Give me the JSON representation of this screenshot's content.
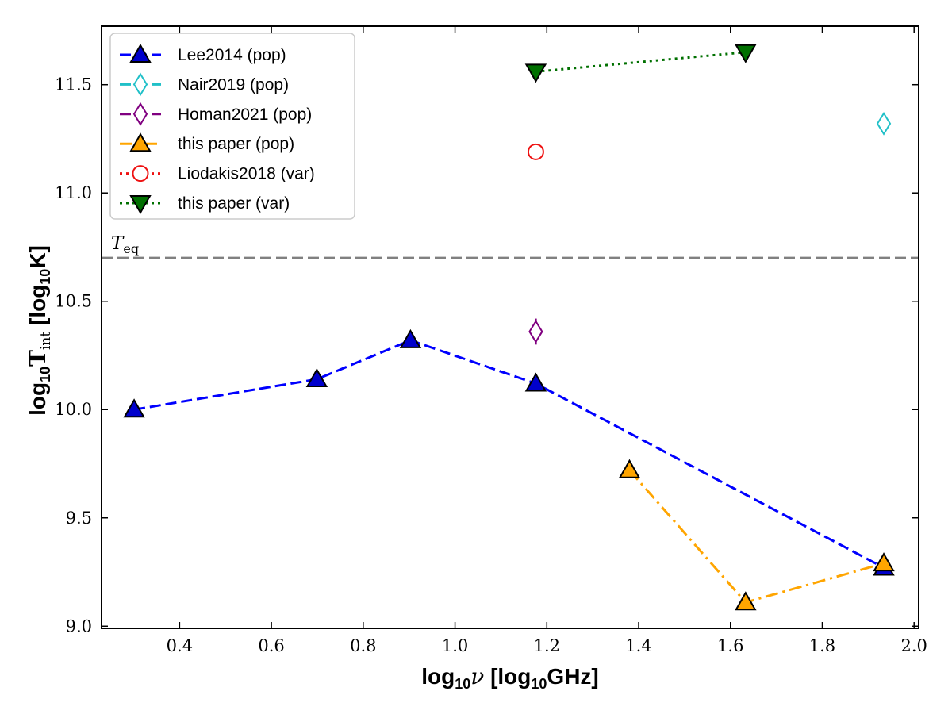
{
  "chart_data": {
    "type": "line",
    "title": "",
    "xlabel": "log10ν [log10GHz]",
    "xlabel_parts": {
      "pre": "log",
      "sub": "10",
      "sym": "ν",
      "post": " [log",
      "post_sub": "10",
      "post_tail": "GHz]"
    },
    "ylabel": "log10Tint [log10K]",
    "ylabel_parts": {
      "pre": "log",
      "sub": "10",
      "sym": "T",
      "sym_sub": "int",
      "post": " [log",
      "post_sub": "10",
      "post_tail": "K]"
    },
    "xlim": [
      0.23,
      2.01
    ],
    "ylim": [
      8.99,
      11.77
    ],
    "xticks": [
      0.4,
      0.6,
      0.8,
      1.0,
      1.2,
      1.4,
      1.6,
      1.8,
      2.0
    ],
    "xtick_labels": [
      "0.4",
      "0.6",
      "0.8",
      "1.0",
      "1.2",
      "1.4",
      "1.6",
      "1.8",
      "2.0"
    ],
    "yticks": [
      9.0,
      9.5,
      10.0,
      10.5,
      11.0,
      11.5
    ],
    "ytick_labels": [
      "9.0",
      "9.5",
      "10.0",
      "10.5",
      "11.0",
      "11.5"
    ],
    "grid": false,
    "legend_position": "upper-left",
    "reference_line": {
      "y": 10.7,
      "label": "T",
      "label_sub": "eq",
      "color": "#808080",
      "style": "dashed"
    },
    "series": [
      {
        "name": "Lee2014 (pop)",
        "color": "#0000ff",
        "fill": "#0000cc",
        "line_style": "dashed",
        "marker": "triangle-up",
        "connect": true,
        "x": [
          0.301,
          0.699,
          0.903,
          1.176,
          1.934
        ],
        "y": [
          10.0,
          10.14,
          10.32,
          10.12,
          9.27
        ]
      },
      {
        "name": "Nair2019 (pop)",
        "color": "#20c0c8",
        "fill": "#ffffff",
        "line_style": "dashed",
        "marker": "thin-diamond",
        "connect": false,
        "x": [
          1.934
        ],
        "y": [
          11.32
        ]
      },
      {
        "name": "Homan2021 (pop)",
        "color": "#800080",
        "fill": "#ffffff",
        "line_style": "dashed",
        "marker": "thin-diamond",
        "connect": false,
        "x": [
          1.176
        ],
        "y": [
          10.36
        ],
        "yerr": [
          0.06
        ]
      },
      {
        "name": "this paper (pop)",
        "color": "#ffa500",
        "fill": "#ffa500",
        "line_style": "dashdot",
        "marker": "triangle-up",
        "connect": true,
        "x": [
          1.38,
          1.633,
          1.934
        ],
        "y": [
          9.72,
          9.11,
          9.29
        ]
      },
      {
        "name": "Liodakis2018 (var)",
        "color": "#ee1111",
        "fill": "#ffffff",
        "line_style": "dotted",
        "marker": "circle",
        "connect": false,
        "x": [
          1.176
        ],
        "y": [
          11.19
        ]
      },
      {
        "name": "this paper (var)",
        "color": "#007000",
        "fill": "#007000",
        "line_style": "dotted",
        "marker": "triangle-down",
        "connect": true,
        "x": [
          1.176,
          1.633
        ],
        "y": [
          11.56,
          11.65
        ]
      }
    ]
  }
}
